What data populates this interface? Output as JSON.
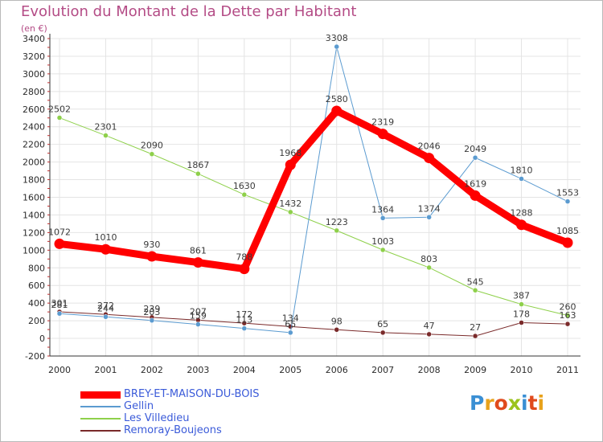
{
  "title": "Evolution du Montant de la Dette par Habitant",
  "subtitle": "(en €)",
  "logo": {
    "text": "Proxiti",
    "colors": [
      "#3a8fd4",
      "#e8a21c",
      "#e04a1c",
      "#9bc31d",
      "#3a8fd4",
      "#e04a1c",
      "#e8a21c"
    ]
  },
  "chart_data": {
    "type": "line",
    "x": [
      "2000",
      "2001",
      "2002",
      "2003",
      "2004",
      "2005",
      "2006",
      "2007",
      "2008",
      "2009",
      "2010",
      "2011"
    ],
    "ylim": [
      -200,
      3400
    ],
    "yticks": [
      -200,
      0,
      200,
      400,
      600,
      800,
      1000,
      1200,
      1400,
      1600,
      1800,
      2000,
      2200,
      2400,
      2600,
      2800,
      3000,
      3200,
      3400
    ],
    "grid": true,
    "legend_position": "bottom-left",
    "series": [
      {
        "name": "BREY-ET-MAISON-DU-BOIS",
        "color": "#ff0000",
        "width": 9,
        "values": [
          1072,
          1010,
          930,
          861,
          788,
          1968,
          2580,
          2319,
          2046,
          1619,
          1288,
          1085
        ],
        "labels": [
          "1072",
          "1010",
          "930",
          "861",
          "788",
          "1968",
          "2580",
          "2319",
          "2046",
          "1619",
          "1288",
          "1085"
        ]
      },
      {
        "name": "Gellin",
        "color": "#5b9bd0",
        "width": 1,
        "values": [
          281,
          244,
          203,
          159,
          113,
          65,
          3308,
          1364,
          1374,
          2049,
          1810,
          1553
        ],
        "labels": [
          "281",
          "244",
          "203",
          "159",
          "113",
          "65",
          "3308",
          "1364",
          "1374",
          "2049",
          "1810",
          "1553"
        ]
      },
      {
        "name": "Les Villedieu",
        "color": "#8ed04a",
        "width": 1,
        "values": [
          2502,
          2301,
          2090,
          1867,
          1630,
          1432,
          1223,
          1003,
          803,
          545,
          387,
          260
        ],
        "labels": [
          "2502",
          "2301",
          "2090",
          "1867",
          "1630",
          "1432",
          "1223",
          "1003",
          "803",
          "545",
          "387",
          "260"
        ]
      },
      {
        "name": "Remoray-Boujeons",
        "color": "#7a2a2a",
        "width": 1,
        "values": [
          301,
          272,
          239,
          207,
          172,
          134,
          98,
          65,
          47,
          27,
          178,
          163
        ],
        "labels": [
          "301",
          "272",
          "239",
          "207",
          "172",
          "134",
          "98",
          "65",
          "47",
          "27",
          "178",
          "163"
        ]
      }
    ]
  }
}
